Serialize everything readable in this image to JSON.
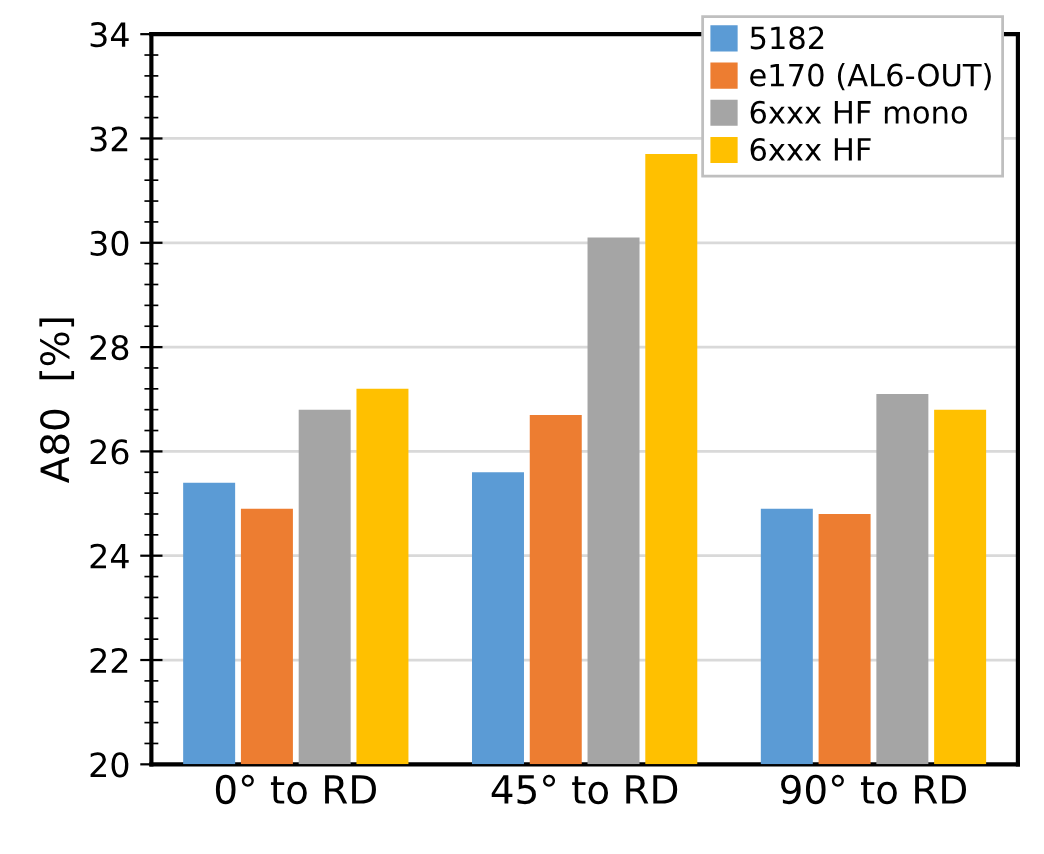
{
  "chart_data": {
    "type": "bar",
    "ylabel": "A80  [%]",
    "categories": [
      "0° to RD",
      "45° to RD",
      "90° to RD"
    ],
    "series": [
      {
        "name": "5182",
        "color": "#5b9bd5",
        "values": [
          25.4,
          25.6,
          24.9
        ]
      },
      {
        "name": "e170 (AL6-OUT)",
        "color": "#ed7d31",
        "values": [
          24.9,
          26.7,
          24.8
        ]
      },
      {
        "name": "6xxx HF mono",
        "color": "#a5a5a5",
        "values": [
          26.8,
          30.1,
          27.1
        ]
      },
      {
        "name": "6xxx HF",
        "color": "#ffc000",
        "values": [
          27.2,
          31.7,
          26.8
        ]
      }
    ],
    "ylim": [
      20,
      34
    ],
    "yticks": [
      20,
      22,
      24,
      26,
      28,
      30,
      32,
      34
    ],
    "grid": "y",
    "legend": "top right"
  }
}
